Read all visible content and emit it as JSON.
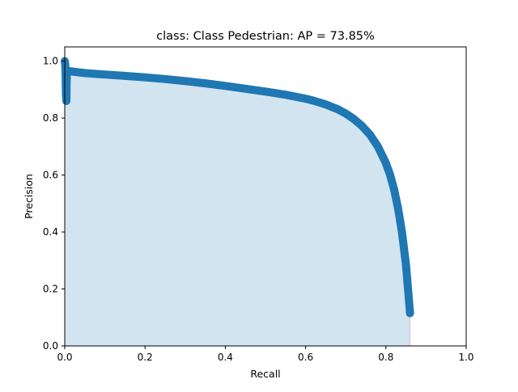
{
  "chart_data": {
    "type": "line",
    "title": "class: Class Pedestrian: AP = 73.85%",
    "xlabel": "Recall",
    "ylabel": "Precision",
    "xlim": [
      0,
      1
    ],
    "ylim": [
      0,
      1.05
    ],
    "xticks": [
      "0.0",
      "0.2",
      "0.4",
      "0.6",
      "0.8",
      "1.0"
    ],
    "yticks": [
      "0.0",
      "0.2",
      "0.4",
      "0.6",
      "0.8",
      "1.0"
    ],
    "grid": false,
    "series": [
      {
        "x": [
          0.0,
          0.001,
          0.002,
          0.003,
          0.004,
          0.005,
          0.006,
          0.01,
          0.05,
          0.1,
          0.15,
          0.2,
          0.25,
          0.3,
          0.35,
          0.4,
          0.45,
          0.5,
          0.55,
          0.6,
          0.62,
          0.65,
          0.68,
          0.7,
          0.72,
          0.74,
          0.76,
          0.78,
          0.8,
          0.81,
          0.82,
          0.83,
          0.84,
          0.85,
          0.855,
          0.86
        ],
        "y": [
          1.0,
          0.99,
          0.96,
          0.88,
          0.86,
          0.97,
          0.967,
          0.965,
          0.958,
          0.953,
          0.948,
          0.943,
          0.937,
          0.93,
          0.922,
          0.913,
          0.903,
          0.893,
          0.882,
          0.868,
          0.861,
          0.848,
          0.831,
          0.816,
          0.797,
          0.773,
          0.742,
          0.7,
          0.642,
          0.602,
          0.552,
          0.485,
          0.4,
          0.285,
          0.2,
          0.115
        ]
      }
    ],
    "colors": {
      "line": "#1f77b4",
      "fill": "#1f77b4",
      "fill_alpha": 0.2,
      "edge": "#e377c2"
    }
  }
}
